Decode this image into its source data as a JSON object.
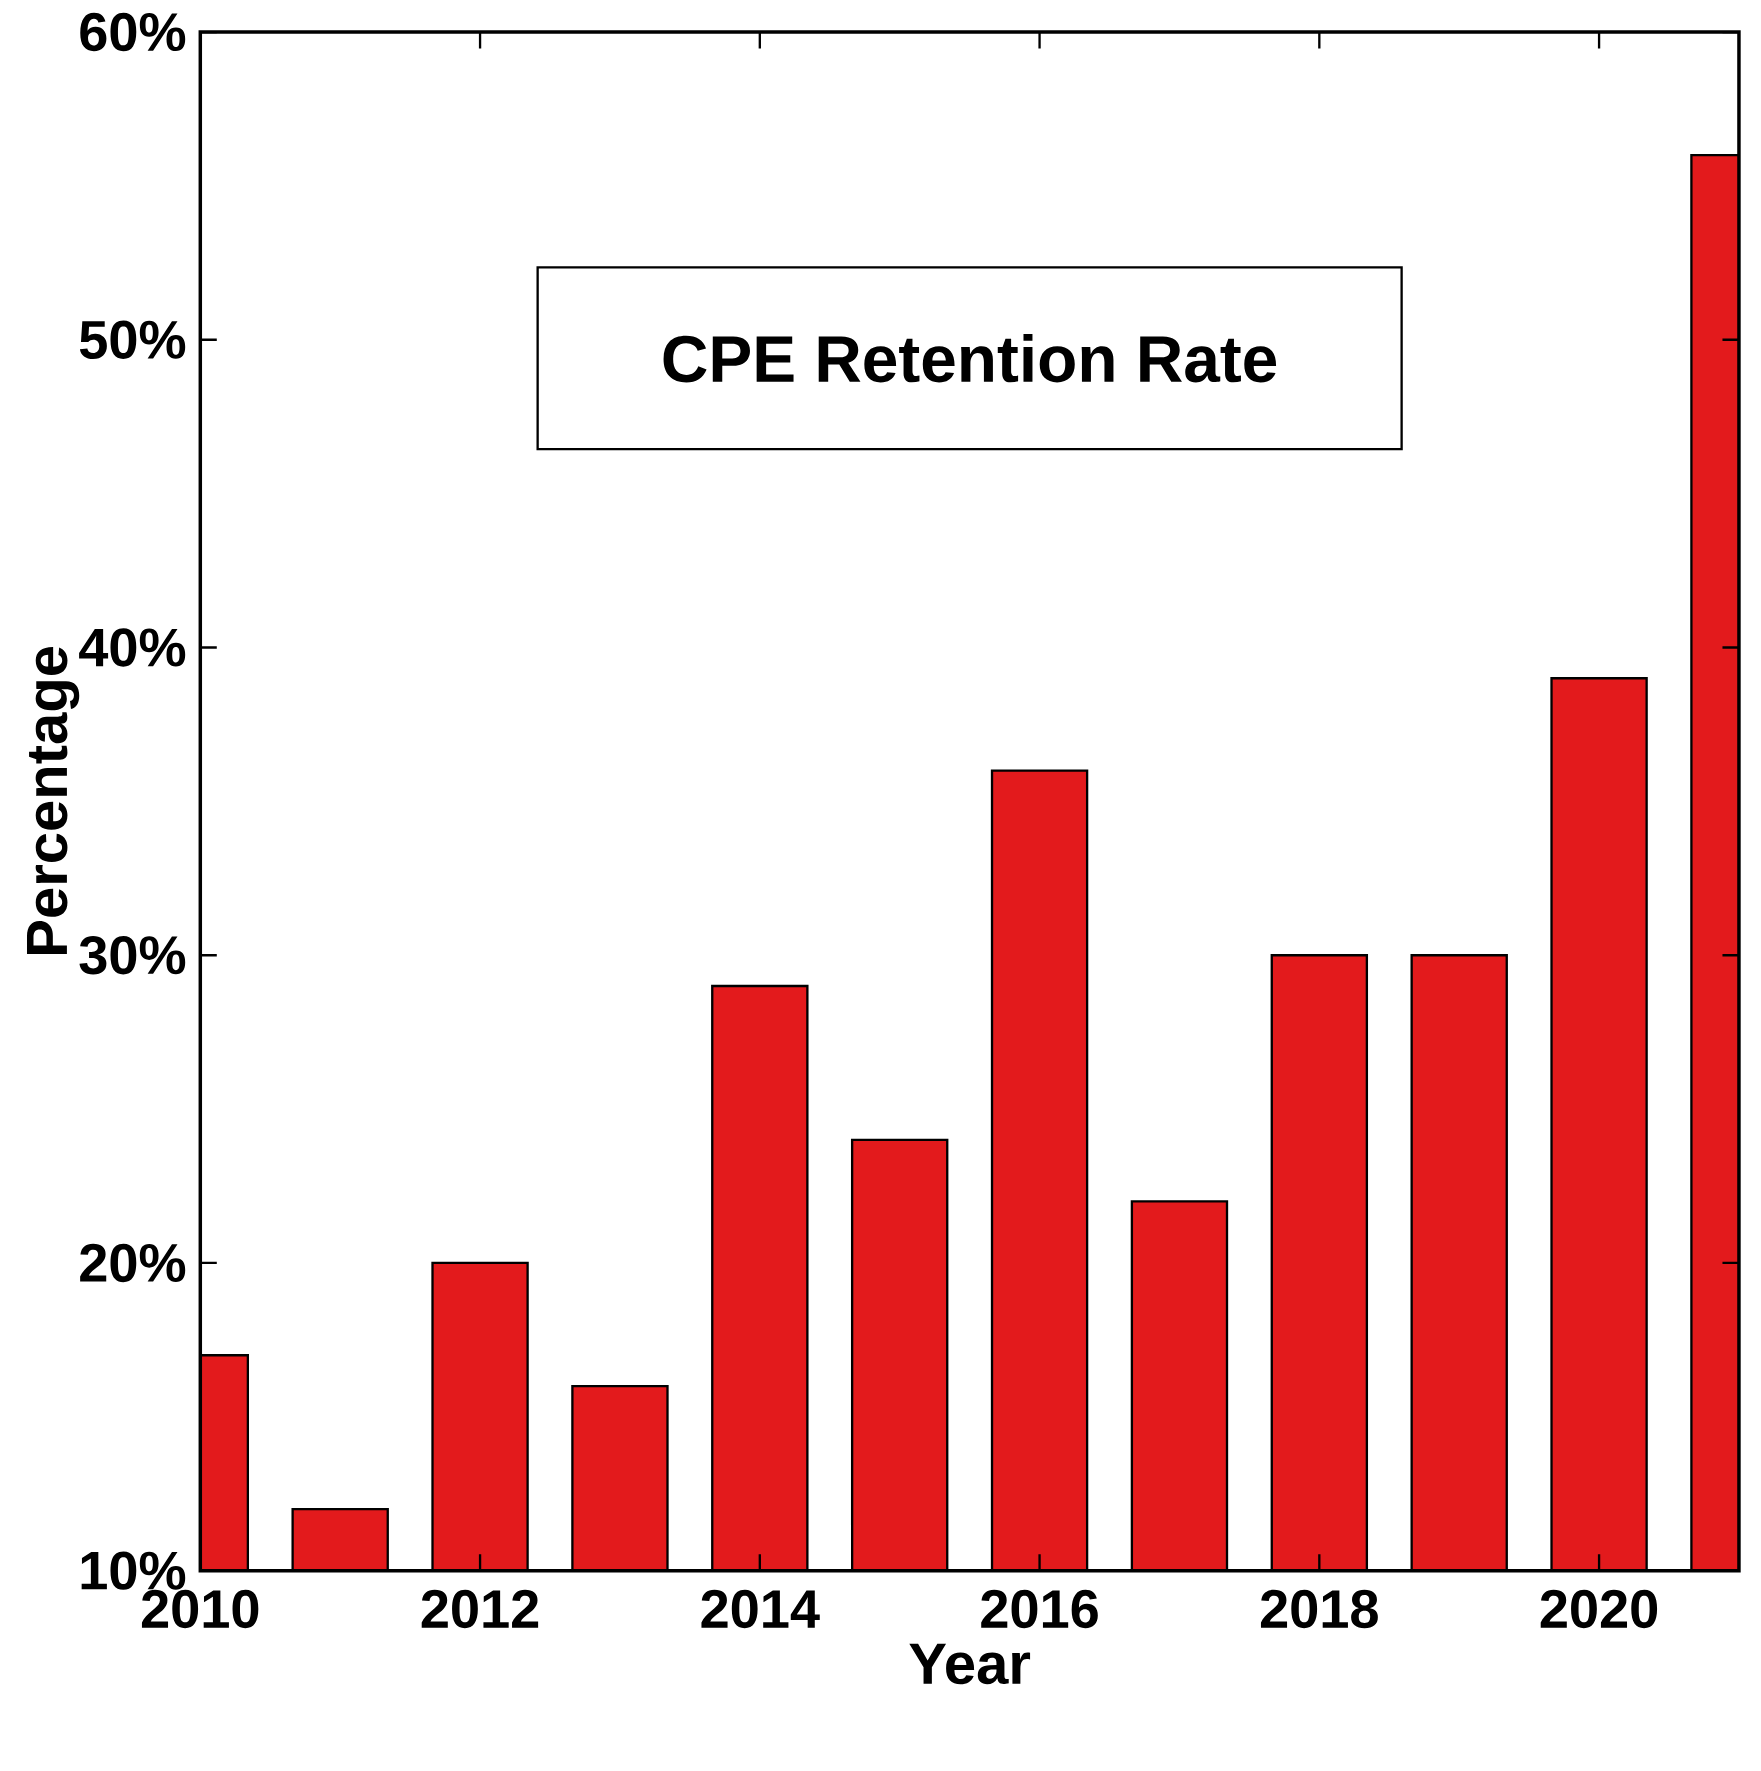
{
  "chart_data": {
    "type": "bar",
    "title": "CPE Retention Rate",
    "xlabel": "Year",
    "ylabel": "Percentage",
    "x": [
      2010,
      2011,
      2012,
      2013,
      2014,
      2015,
      2016,
      2017,
      2018,
      2019,
      2020,
      2021
    ],
    "values": [
      17,
      12,
      20,
      16,
      29,
      24,
      36,
      22,
      30,
      30,
      39,
      56
    ],
    "color": "#e31a1c",
    "xlim": [
      2010,
      2021
    ],
    "xticks": [
      2010,
      2012,
      2014,
      2016,
      2018,
      2020
    ],
    "ylim": [
      10,
      60
    ],
    "yticks": [
      {
        "value": 10,
        "label": "10%"
      },
      {
        "value": 20,
        "label": "20%"
      },
      {
        "value": 30,
        "label": "30%"
      },
      {
        "value": 40,
        "label": "40%"
      },
      {
        "value": 50,
        "label": "50%"
      },
      {
        "value": 60,
        "label": "60%"
      }
    ],
    "grid": false
  }
}
